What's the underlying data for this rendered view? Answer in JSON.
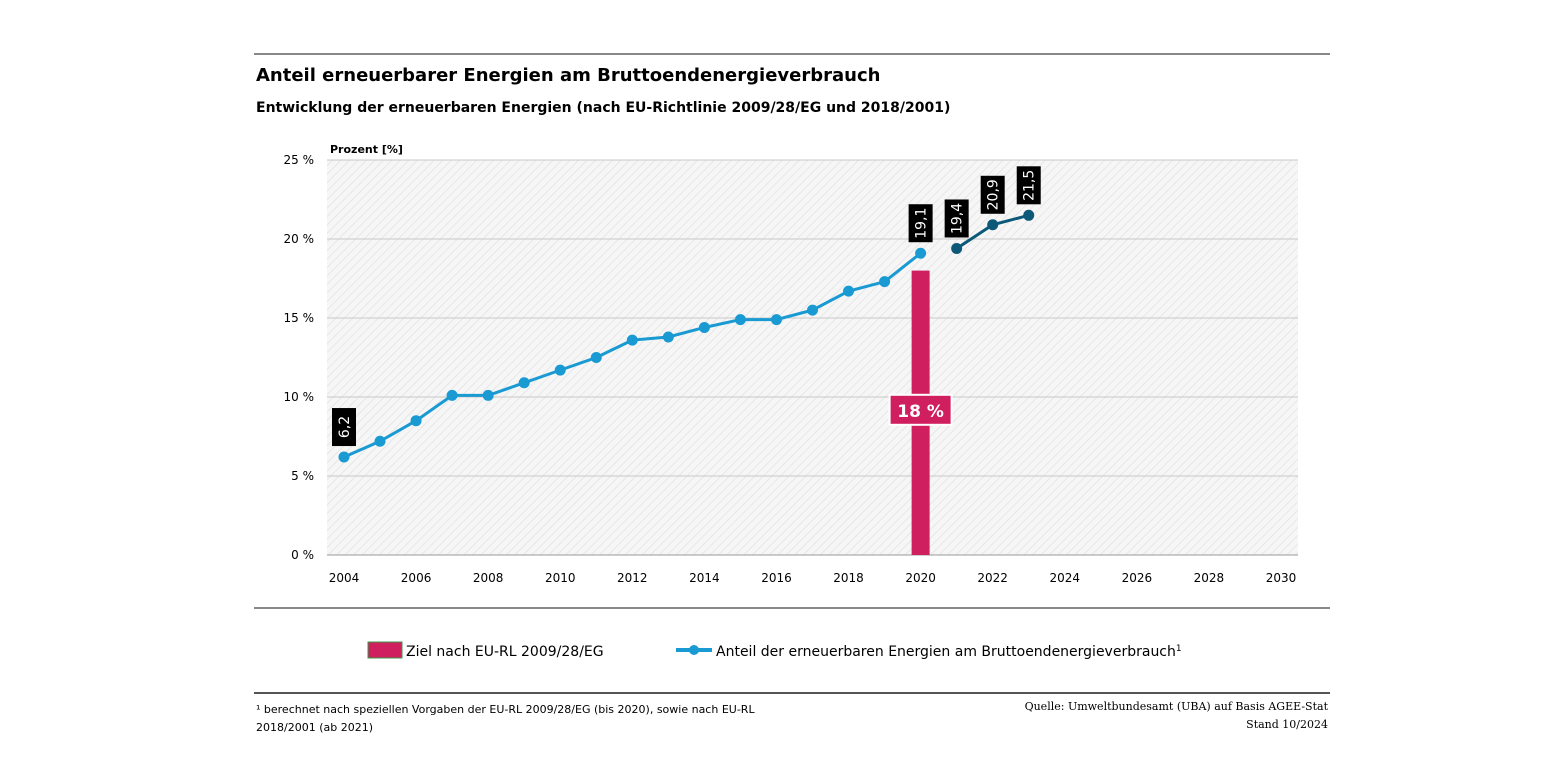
{
  "chart_data": {
    "type": "line",
    "title": "Anteil erneuerbarer Energien am Bruttoendenergieverbrauch",
    "subtitle": "Entwicklung der erneuerbaren Energien (nach  EU-Richtlinie 2009/28/EG  und 2018/2001)",
    "ylabel": "Prozent [%]",
    "xlabel": "",
    "xlim": [
      2004,
      2030
    ],
    "ylim": [
      0,
      25
    ],
    "x_ticks": [
      "2004",
      "2006",
      "2008",
      "2010",
      "2012",
      "2014",
      "2016",
      "2018",
      "2020",
      "2022",
      "2024",
      "2026",
      "2028",
      "2030"
    ],
    "y_ticks": [
      "0 %",
      "5 %",
      "10 %",
      "15 %",
      "20 %",
      "25 %"
    ],
    "grid": true,
    "legend_position": "bottom",
    "series": [
      {
        "name": "Anteil der erneuerbaren Energien am Bruttoendenergieverbrauch",
        "color": "#1a9ad2",
        "x": [
          2004,
          2005,
          2006,
          2007,
          2008,
          2009,
          2010,
          2011,
          2012,
          2013,
          2014,
          2015,
          2016,
          2017,
          2018,
          2019,
          2020
        ],
        "values": [
          6.2,
          7.2,
          8.5,
          10.1,
          10.1,
          10.9,
          11.7,
          12.5,
          13.6,
          13.8,
          14.4,
          14.9,
          14.9,
          15.5,
          16.7,
          17.3,
          19.1
        ],
        "data_labels": {
          "2004": "6,2",
          "2020": "19,1"
        }
      },
      {
        "color": "#0b5878",
        "x": [
          2021,
          2022,
          2023
        ],
        "values": [
          19.4,
          20.9,
          21.5
        ],
        "data_labels": {
          "2021": "19,4",
          "2022": "20,9",
          "2023": "21,5"
        }
      }
    ],
    "target_bar": {
      "name": "Ziel nach EU-RL 2009/28/EG",
      "x": 2020,
      "value": 18,
      "label": "18 %",
      "color": "#d01f5e"
    },
    "legend": [
      {
        "label": "Ziel nach EU-RL 2009/28/EG"
      },
      {
        "label": "Anteil der erneuerbaren Energien am Bruttoendenergieverbrauch",
        "sup": "1"
      }
    ],
    "footnote": [
      "¹ berechnet nach speziellen Vorgaben der EU-RL 2009/28/EG (bis 2020), sowie nach EU-RL",
      "2018/2001 (ab 2021)"
    ],
    "source": [
      "Quelle: Umweltbundesamt (UBA) auf Basis AGEE-Stat",
      "Stand 10/2024"
    ]
  }
}
